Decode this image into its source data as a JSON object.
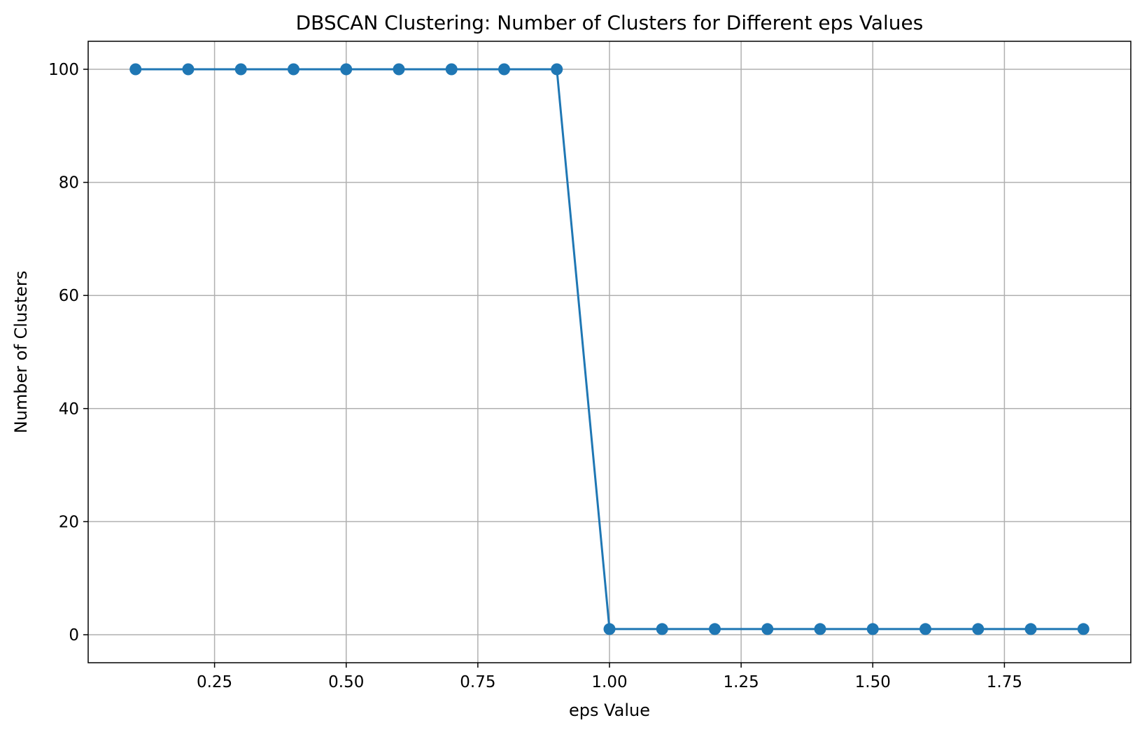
{
  "chart_data": {
    "type": "line",
    "title": "DBSCAN Clustering: Number of Clusters for Different eps Values",
    "xlabel": "eps Value",
    "ylabel": "Number of Clusters",
    "xlim": [
      0.01,
      1.99
    ],
    "ylim": [
      -4.95,
      104.95
    ],
    "x_ticks": [
      0.25,
      0.5,
      0.75,
      1.0,
      1.25,
      1.5,
      1.75
    ],
    "x_tick_labels": [
      "0.25",
      "0.50",
      "0.75",
      "1.00",
      "1.25",
      "1.50",
      "1.75"
    ],
    "y_ticks": [
      0,
      20,
      40,
      60,
      80,
      100
    ],
    "y_tick_labels": [
      "0",
      "20",
      "40",
      "60",
      "80",
      "100"
    ],
    "grid": true,
    "series": [
      {
        "color": "#1f77b4",
        "marker": "circle",
        "x": [
          0.1,
          0.2,
          0.3,
          0.4,
          0.5,
          0.6,
          0.7,
          0.8,
          0.9,
          1.0,
          1.1,
          1.2,
          1.3,
          1.4,
          1.5,
          1.6,
          1.7,
          1.8,
          1.9
        ],
        "y": [
          100,
          100,
          100,
          100,
          100,
          100,
          100,
          100,
          100,
          1,
          1,
          1,
          1,
          1,
          1,
          1,
          1,
          1,
          1
        ]
      }
    ]
  }
}
